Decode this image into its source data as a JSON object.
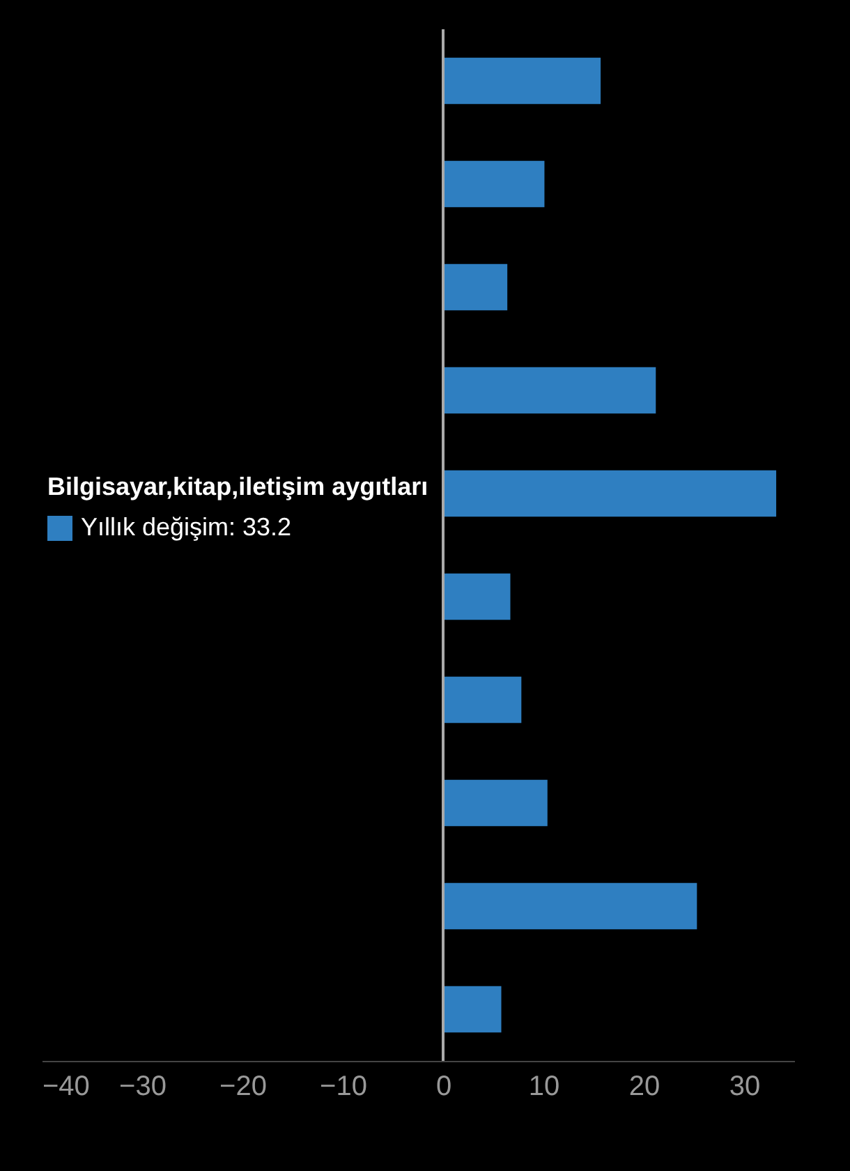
{
  "chart_data": {
    "type": "bar",
    "orientation": "horizontal",
    "categories": [
      null,
      null,
      null,
      null,
      null,
      null,
      null,
      null,
      null,
      null
    ],
    "series": [
      {
        "color": "#2f7fc1",
        "values": [
          15.7,
          10.1,
          6.4,
          21.2,
          33.2,
          6.7,
          7.8,
          10.4,
          25.3,
          5.8
        ]
      }
    ],
    "xlim": [
      -40,
      35
    ],
    "xticks": [
      -40,
      -30,
      -20,
      -10,
      0,
      10,
      20,
      30
    ],
    "tick_labels": "x",
    "ref_lines": [
      {
        "axis": "x",
        "value": 0,
        "color": "#aaaaaa"
      }
    ],
    "annotations": [
      "Bilgisayar,kitap,iletişim aygıtları",
      "Yıllık değişim: 33.2"
    ]
  }
}
